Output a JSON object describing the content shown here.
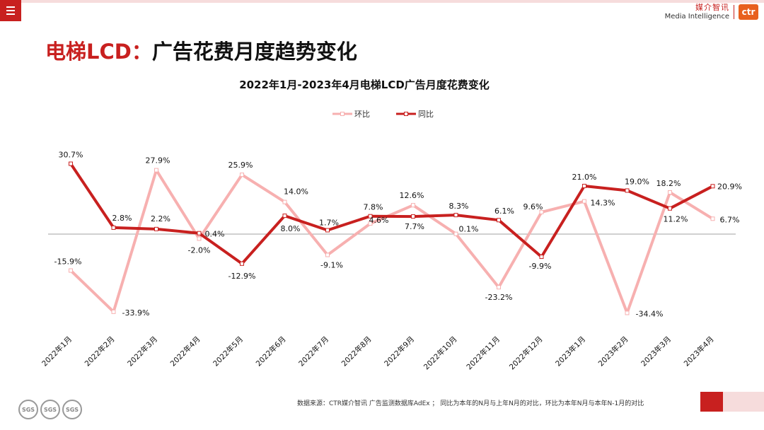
{
  "header": {
    "brand_cn": "媒介智讯",
    "brand_en": "Media Intelligence",
    "logo_text": "ctr",
    "menu_icon": "hamburger-menu-icon"
  },
  "page_title": {
    "accent": "电梯LCD：",
    "rest": "广告花费月度趋势变化"
  },
  "footer": {
    "source_note": "数据来源：CTR媒介智讯 广告监测数据库AdEx ； 同比为本年的N月与上年N月的对比，环比为本年N月与本年N-1月的对比",
    "seal_text": "SGS"
  },
  "colors": {
    "hb": "#f7b0b0",
    "tb": "#c8201f",
    "brand": "#c8201f",
    "zero_line": "#a0a0a0"
  },
  "chart_data": {
    "type": "line",
    "title": "2022年1月-2023年4月电梯LCD广告月度花费变化",
    "categories": [
      "2022年1月",
      "2022年2月",
      "2022年3月",
      "2022年4月",
      "2022年5月",
      "2022年6月",
      "2022年7月",
      "2022年8月",
      "2022年9月",
      "2022年10月",
      "2022年11月",
      "2022年12月",
      "2023年1月",
      "2023年2月",
      "2023年3月",
      "2023年4月"
    ],
    "unit": "%",
    "legend_position": "top-center",
    "grid": false,
    "series": [
      {
        "name": "环比",
        "values": [
          -15.9,
          -33.9,
          27.9,
          -2.0,
          25.9,
          14.0,
          -9.1,
          4.6,
          12.6,
          0.1,
          -23.2,
          9.6,
          14.3,
          -34.4,
          18.2,
          6.7
        ],
        "labels": [
          "-15.9%",
          "-33.9%",
          "27.9%",
          "-2.0%",
          "25.9%",
          "14.0%",
          "-9.1%",
          "4.6%",
          "12.6%",
          "0.1%",
          "-23.2%",
          "9.6%",
          "14.3%",
          "-34.4%",
          "18.2%",
          "6.7%"
        ]
      },
      {
        "name": "同比",
        "values": [
          30.7,
          2.8,
          2.2,
          0.4,
          -12.9,
          8.0,
          1.7,
          7.8,
          7.7,
          8.3,
          6.1,
          -9.9,
          21.0,
          19.0,
          11.2,
          20.9
        ],
        "labels": [
          "30.7%",
          "2.8%",
          "2.2%",
          "0.4%",
          "-12.9%",
          "8.0%",
          "1.7%",
          "7.8%",
          "7.7%",
          "8.3%",
          "6.1%",
          "-9.9%",
          "21.0%",
          "19.0%",
          "11.2%",
          "20.9%"
        ]
      }
    ]
  }
}
